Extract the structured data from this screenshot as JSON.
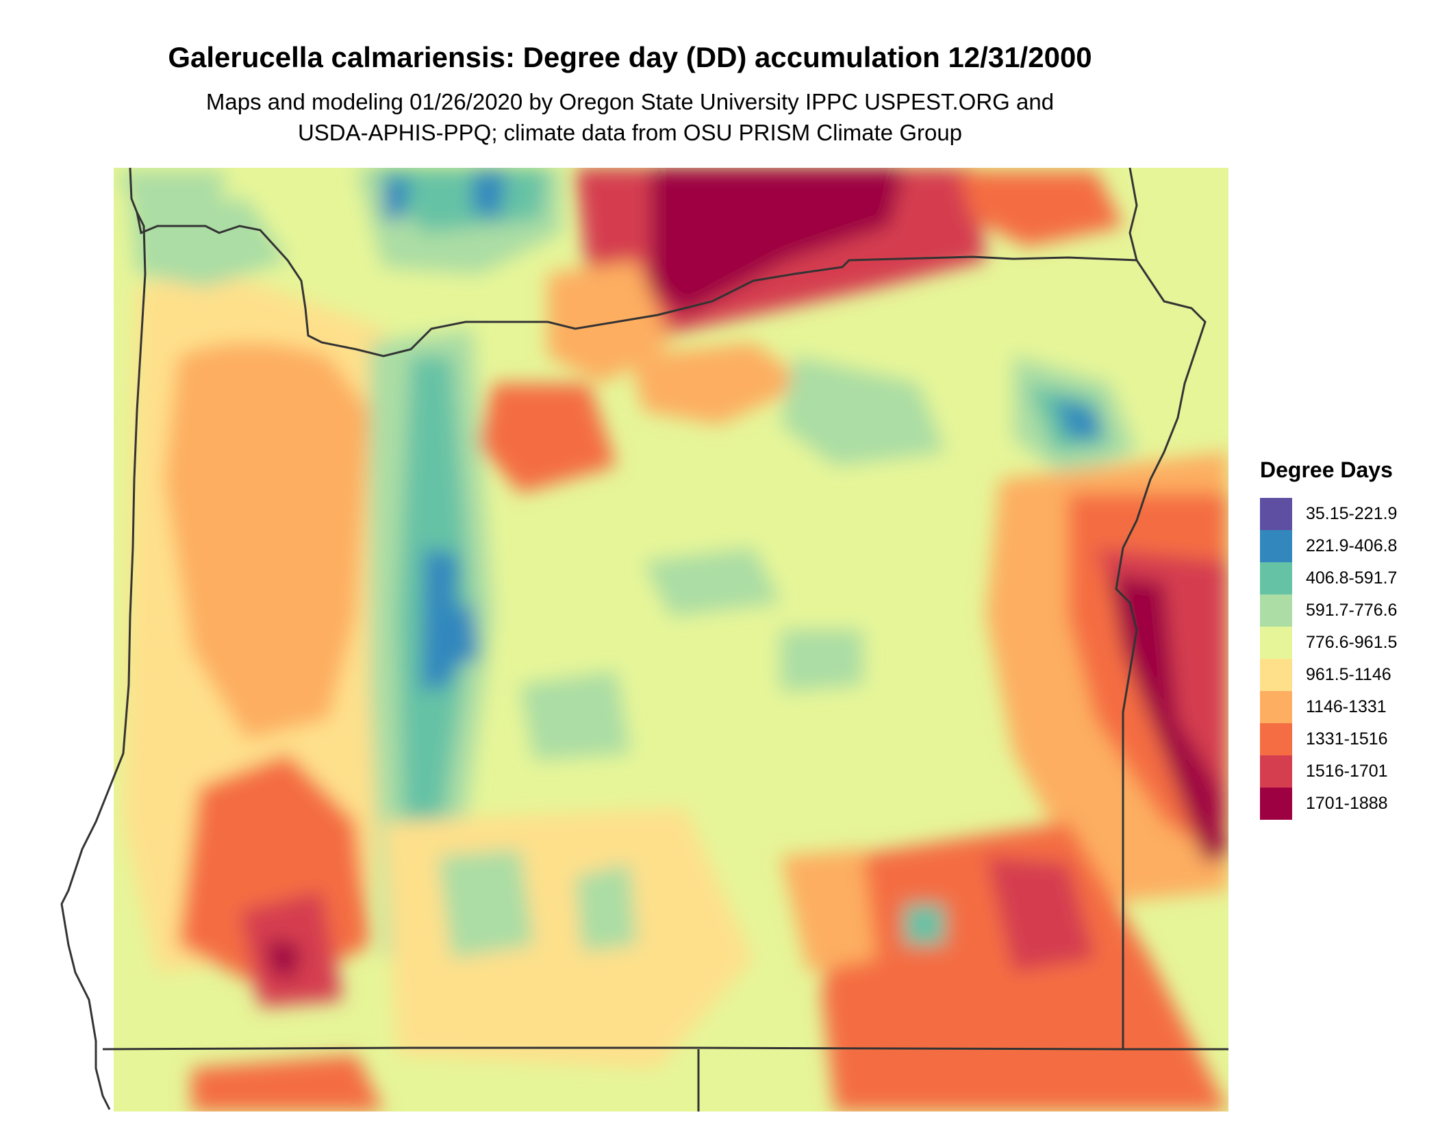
{
  "title": "Galerucella calmariensis: Degree day (DD) accumulation 12/31/2000",
  "subtitle_line1": "Maps and modeling 01/26/2020 by Oregon State University IPPC USPEST.ORG and",
  "subtitle_line2": "USDA-APHIS-PPQ; climate data from OSU PRISM Climate Group",
  "legend": {
    "title": "Degree Days",
    "classes": [
      {
        "label": "35.15-221.9",
        "color": "#5e4fa2"
      },
      {
        "label": "221.9-406.8",
        "color": "#3288bd"
      },
      {
        "label": "406.8-591.7",
        "color": "#66c2a5"
      },
      {
        "label": "591.7-776.6",
        "color": "#abdda4"
      },
      {
        "label": "776.6-961.5",
        "color": "#e6f598"
      },
      {
        "label": "961.5-1146",
        "color": "#fee08b"
      },
      {
        "label": "1146-1331",
        "color": "#fdae61"
      },
      {
        "label": "1331-1516",
        "color": "#f46d43"
      },
      {
        "label": "1516-1701",
        "color": "#d53e4f"
      },
      {
        "label": "1701-1888",
        "color": "#9e0142"
      }
    ]
  },
  "map": {
    "region": "Oregon",
    "raster": "degree-day-accumulation",
    "boundary_color": "#333333"
  }
}
